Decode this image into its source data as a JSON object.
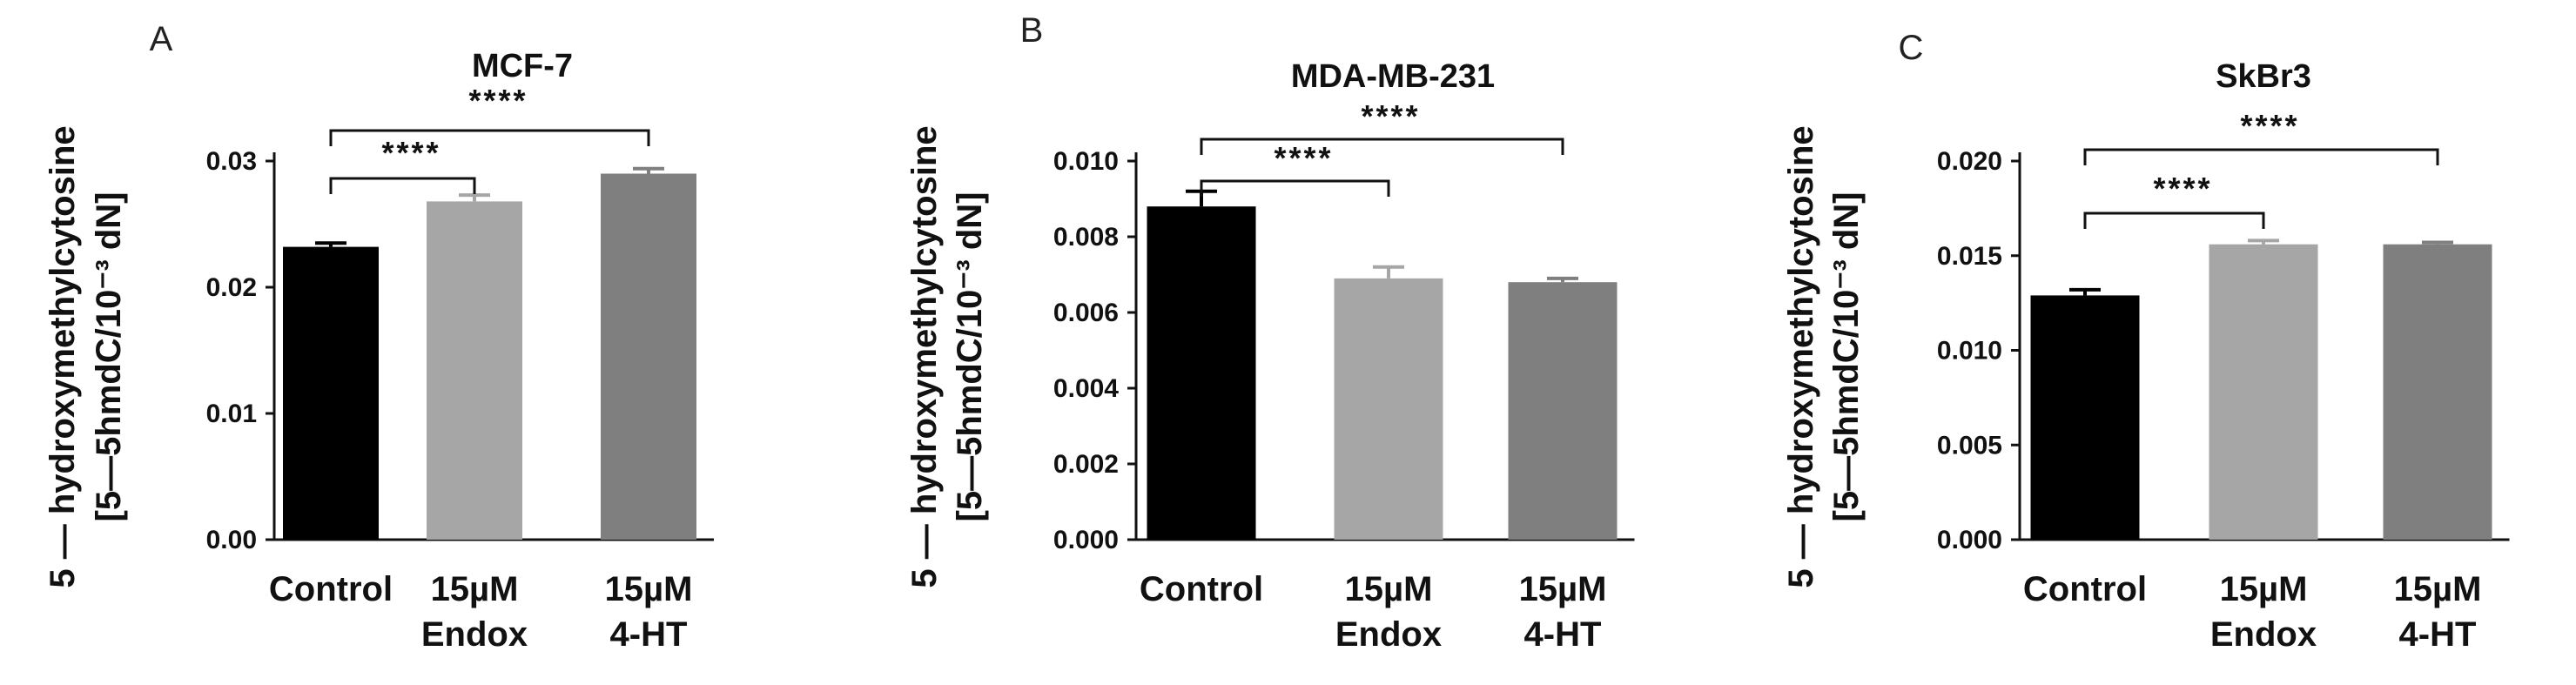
{
  "chart_data": [
    {
      "type": "bar",
      "panel": "A",
      "title": "MCF-7",
      "ylabel_lines": [
        "5 — hydroxymethylcytosine",
        "[5—5hmdC/10⁻³ dN]"
      ],
      "ylim": [
        0,
        0.03
      ],
      "yticks": [
        "0.00",
        "0.01",
        "0.02",
        "0.03"
      ],
      "ytick_values": [
        0,
        0.01,
        0.02,
        0.03
      ],
      "categories": [
        [
          "Control"
        ],
        [
          "15µM",
          "Endox"
        ],
        [
          "15µM",
          "4-HT"
        ]
      ],
      "values": [
        0.0232,
        0.0268,
        0.029
      ],
      "errors": [
        0.0003,
        0.0005,
        0.0004
      ],
      "colors": [
        "#000000",
        "#a6a6a6",
        "#7f7f7f"
      ],
      "significance": [
        {
          "from": 0,
          "to": 1,
          "label": "****"
        },
        {
          "from": 0,
          "to": 2,
          "label": "****"
        }
      ]
    },
    {
      "type": "bar",
      "panel": "B",
      "title": "MDA-MB-231",
      "ylabel_lines": [
        "5 — hydroxymethylcytosine",
        "[5—5hmdC/10⁻³ dN]"
      ],
      "ylim": [
        0,
        0.01
      ],
      "yticks": [
        "0.000",
        "0.002",
        "0.004",
        "0.006",
        "0.008",
        "0.010"
      ],
      "ytick_values": [
        0,
        0.002,
        0.004,
        0.006,
        0.008,
        0.01
      ],
      "categories": [
        [
          "Control"
        ],
        [
          "15µM",
          "Endox"
        ],
        [
          "15µM",
          "4-HT"
        ]
      ],
      "values": [
        0.0088,
        0.0069,
        0.0068
      ],
      "errors": [
        0.0004,
        0.0003,
        0.0001
      ],
      "colors": [
        "#000000",
        "#a6a6a6",
        "#7f7f7f"
      ],
      "significance": [
        {
          "from": 0,
          "to": 1,
          "label": "****"
        },
        {
          "from": 0,
          "to": 2,
          "label": "****"
        }
      ]
    },
    {
      "type": "bar",
      "panel": "C",
      "title": "SkBr3",
      "ylabel_lines": [
        "5 — hydroxymethylcytosine",
        "[5—5hmdC/10⁻³ dN]"
      ],
      "ylim": [
        0,
        0.02
      ],
      "yticks": [
        "0.000",
        "0.005",
        "0.010",
        "0.015",
        "0.020"
      ],
      "ytick_values": [
        0,
        0.005,
        0.01,
        0.015,
        0.02
      ],
      "categories": [
        [
          "Control"
        ],
        [
          "15µM",
          "Endox"
        ],
        [
          "15µM",
          "4-HT"
        ]
      ],
      "values": [
        0.0129,
        0.0156,
        0.0156
      ],
      "errors": [
        0.0003,
        0.0002,
        0.0001
      ],
      "colors": [
        "#000000",
        "#a6a6a6",
        "#7f7f7f"
      ],
      "significance": [
        {
          "from": 0,
          "to": 1,
          "label": "****"
        },
        {
          "from": 0,
          "to": 2,
          "label": "****"
        }
      ]
    }
  ]
}
